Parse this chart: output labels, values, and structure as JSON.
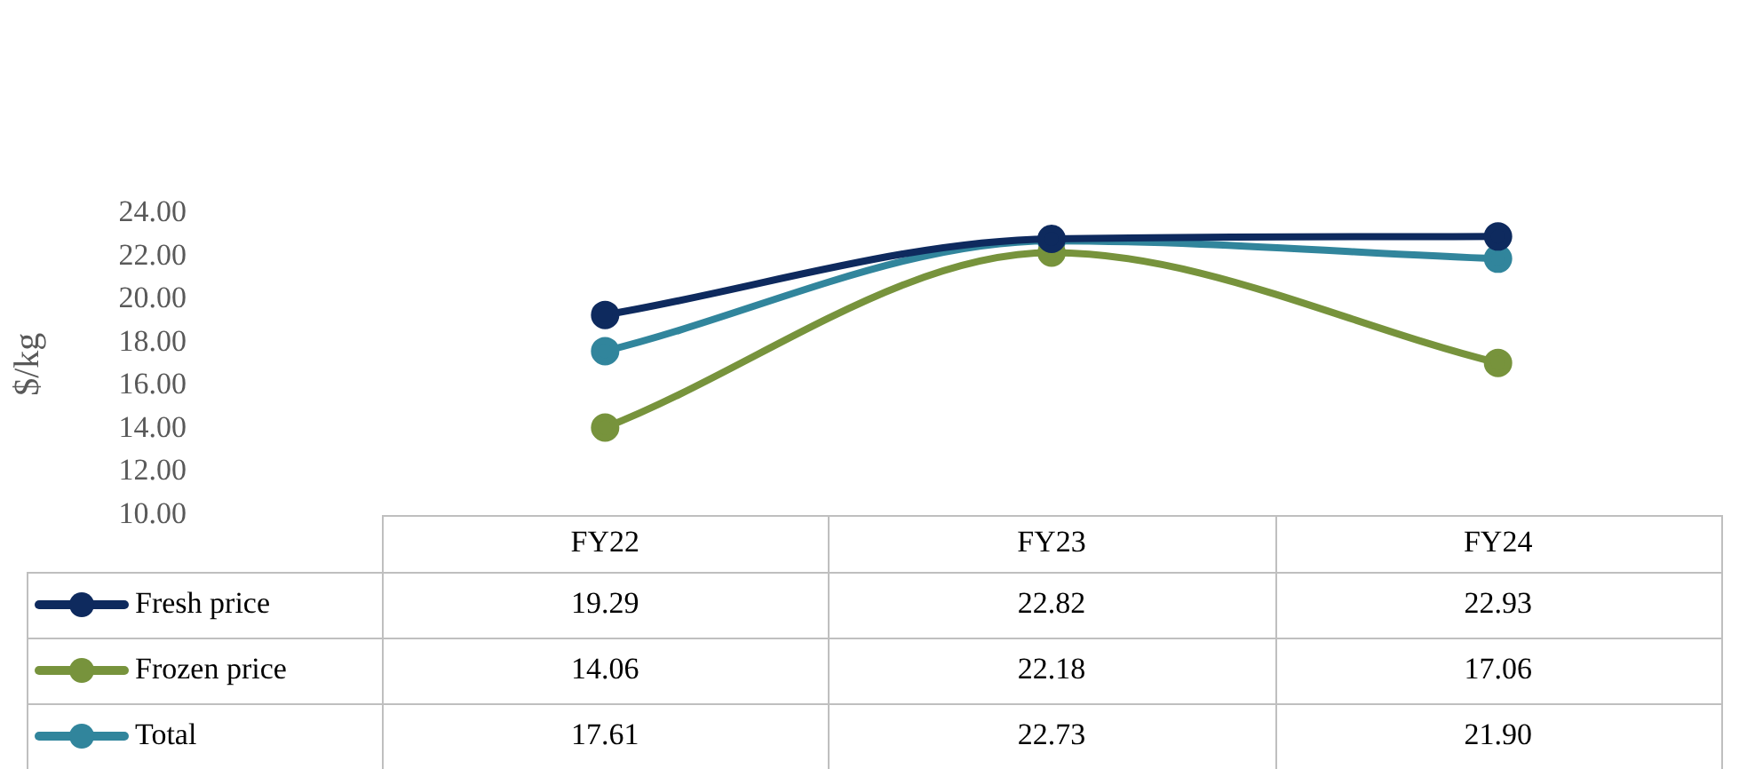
{
  "chart_data": {
    "type": "line",
    "ylabel": "$/kg",
    "categories": [
      "FY22",
      "FY23",
      "FY24"
    ],
    "series": [
      {
        "name": "Fresh price",
        "color": "#0e2a5e",
        "values": [
          19.29,
          22.82,
          22.93
        ],
        "value_labels": [
          "19.29",
          "22.82",
          "22.93"
        ]
      },
      {
        "name": "Frozen price",
        "color": "#77933c",
        "values": [
          14.06,
          22.18,
          17.06
        ],
        "value_labels": [
          "14.06",
          "22.18",
          "17.06"
        ]
      },
      {
        "name": "Total",
        "color": "#31859c",
        "values": [
          17.61,
          22.73,
          21.9
        ],
        "value_labels": [
          "17.61",
          "22.73",
          "21.90"
        ]
      }
    ],
    "ylim": [
      10,
      24
    ],
    "yticks": [
      {
        "value": 10,
        "label": "10.00"
      },
      {
        "value": 12,
        "label": "12.00"
      },
      {
        "value": 14,
        "label": "14.00"
      },
      {
        "value": 16,
        "label": "16.00"
      },
      {
        "value": 18,
        "label": "18.00"
      },
      {
        "value": 20,
        "label": "20.00"
      },
      {
        "value": 22,
        "label": "22.00"
      },
      {
        "value": 24,
        "label": "24.00"
      }
    ],
    "grid": false,
    "legend": "bottom",
    "marker": "circle",
    "line_style": "solid"
  }
}
